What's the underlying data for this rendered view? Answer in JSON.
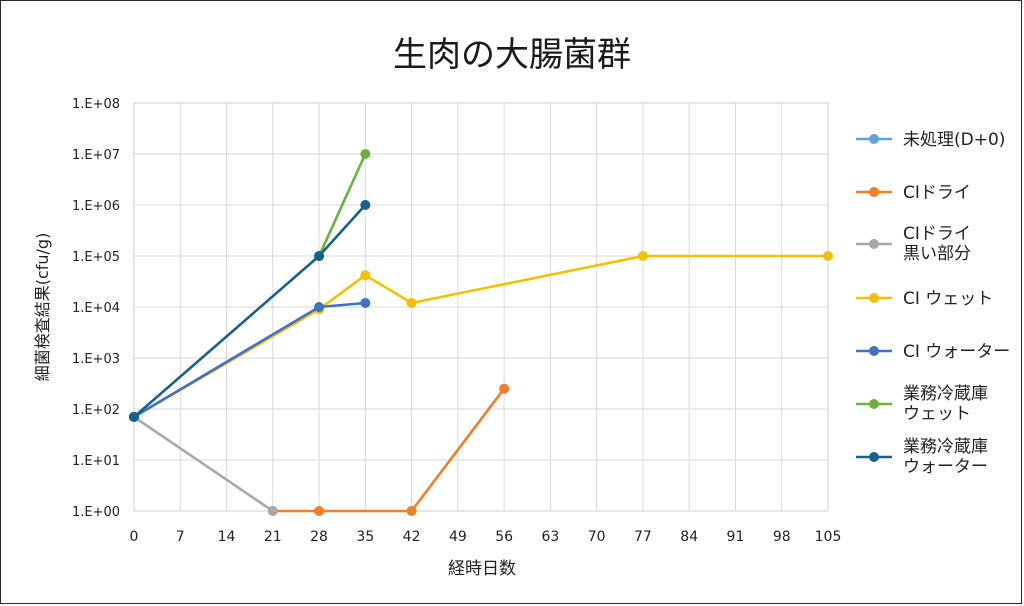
{
  "chart_data": {
    "type": "line",
    "title": "生肉の大腸菌群",
    "xlabel": "経時日数",
    "ylabel": "細菌検査結果(cfu/g)",
    "x_ticks": [
      0,
      7,
      14,
      21,
      28,
      35,
      42,
      49,
      56,
      63,
      70,
      77,
      84,
      91,
      98,
      105
    ],
    "xlim": [
      0,
      105
    ],
    "y_scale": "log",
    "y_tick_labels": [
      "1.E+00",
      "1.E+01",
      "1.E+02",
      "1.E+03",
      "1.E+04",
      "1.E+05",
      "1.E+06",
      "1.E+07",
      "1.E+08"
    ],
    "ylim": [
      1,
      100000000
    ],
    "grid": true,
    "legend_position": "right",
    "series": [
      {
        "name": "未処理(D+0)",
        "color": "#5ba3d9",
        "points": [
          [
            0,
            70
          ]
        ]
      },
      {
        "name": "CIドライ",
        "color": "#f07f27",
        "points": [
          [
            21,
            1
          ],
          [
            28,
            1
          ],
          [
            42,
            1
          ],
          [
            56,
            250
          ]
        ]
      },
      {
        "name": "CIドライ\n黒い部分",
        "color": "#a8a8a8",
        "points": [
          [
            0,
            70
          ],
          [
            21,
            1
          ]
        ]
      },
      {
        "name": "CI ウェット",
        "color": "#f5c000",
        "points": [
          [
            0,
            70
          ],
          [
            28,
            9000
          ],
          [
            35,
            42000
          ],
          [
            42,
            12000
          ],
          [
            77,
            100000
          ],
          [
            105,
            100000
          ]
        ]
      },
      {
        "name": "CI ウォーター",
        "color": "#3f72c4",
        "points": [
          [
            0,
            70
          ],
          [
            28,
            10000
          ],
          [
            35,
            12000
          ]
        ]
      },
      {
        "name": "業務冷蔵庫\nウェット",
        "color": "#6bb23d",
        "points": [
          [
            28,
            100000
          ],
          [
            35,
            10000000
          ]
        ]
      },
      {
        "name": "業務冷蔵庫\nウォーター",
        "color": "#17618f",
        "points": [
          [
            0,
            70
          ],
          [
            28,
            100000
          ],
          [
            35,
            1000000
          ]
        ]
      }
    ]
  }
}
